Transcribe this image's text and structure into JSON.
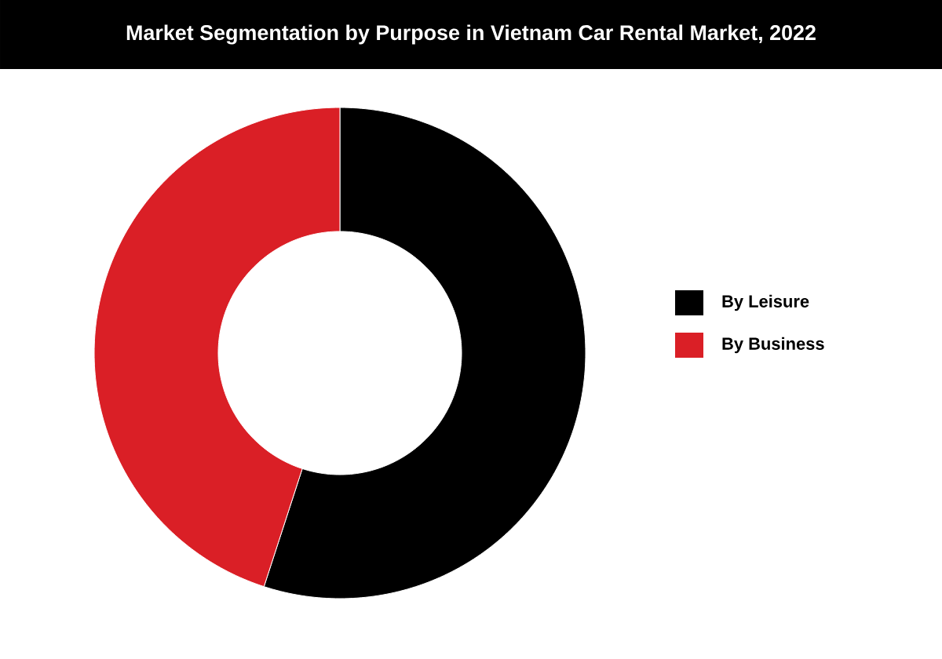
{
  "chart_data": {
    "type": "donut",
    "title": "Market Segmentation by Purpose in Vietnam Car Rental Market, 2022",
    "categories": [
      "By Leisure",
      "By Business"
    ],
    "values": [
      55,
      45
    ],
    "colors": [
      "#000000",
      "#da1f26"
    ],
    "legend": "right"
  }
}
